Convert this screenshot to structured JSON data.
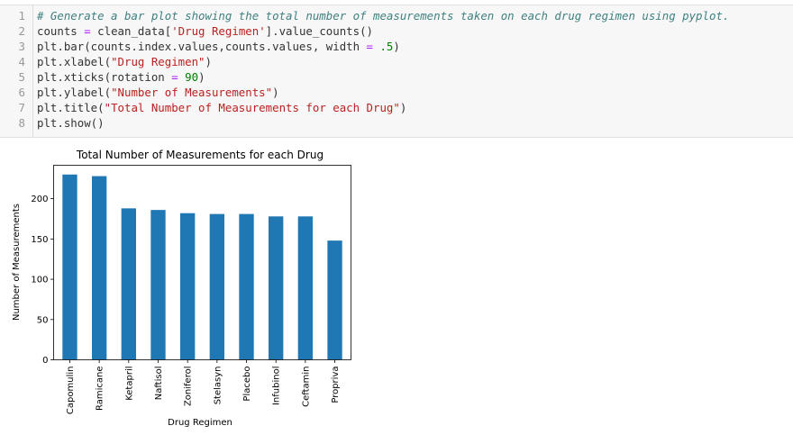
{
  "code": {
    "lines": [
      {
        "n": "1",
        "segments": [
          {
            "t": "# Generate a bar plot showing the total number of measurements taken on each drug regimen using pyplot.",
            "c": "cmt"
          }
        ]
      },
      {
        "n": "2",
        "segments": [
          {
            "t": "counts ",
            "c": ""
          },
          {
            "t": "=",
            "c": "op"
          },
          {
            "t": " clean_data[",
            "c": ""
          },
          {
            "t": "'Drug Regimen'",
            "c": "str"
          },
          {
            "t": "].value_counts()",
            "c": ""
          }
        ]
      },
      {
        "n": "3",
        "segments": [
          {
            "t": "plt.bar(counts.index.values,counts.values, width ",
            "c": ""
          },
          {
            "t": "=",
            "c": "op"
          },
          {
            "t": " ",
            "c": ""
          },
          {
            "t": ".5",
            "c": "num"
          },
          {
            "t": ")",
            "c": ""
          }
        ]
      },
      {
        "n": "4",
        "segments": [
          {
            "t": "plt.xlabel(",
            "c": ""
          },
          {
            "t": "\"Drug Regimen\"",
            "c": "str"
          },
          {
            "t": ")",
            "c": ""
          }
        ]
      },
      {
        "n": "5",
        "segments": [
          {
            "t": "plt.xticks(rotation ",
            "c": ""
          },
          {
            "t": "=",
            "c": "op"
          },
          {
            "t": " ",
            "c": ""
          },
          {
            "t": "90",
            "c": "num"
          },
          {
            "t": ")",
            "c": ""
          }
        ]
      },
      {
        "n": "6",
        "segments": [
          {
            "t": "plt.ylabel(",
            "c": ""
          },
          {
            "t": "\"Number of Measurements\"",
            "c": "str"
          },
          {
            "t": ")",
            "c": ""
          }
        ]
      },
      {
        "n": "7",
        "segments": [
          {
            "t": "plt.title(",
            "c": ""
          },
          {
            "t": "\"Total Number of Measurements for each Drug\"",
            "c": "str"
          },
          {
            "t": ")",
            "c": ""
          }
        ]
      },
      {
        "n": "8",
        "segments": [
          {
            "t": "plt.show()",
            "c": ""
          }
        ]
      }
    ]
  },
  "chart_data": {
    "type": "bar",
    "title": "Total Number of Measurements for each Drug",
    "xlabel": "Drug Regimen",
    "ylabel": "Number of Measurements",
    "categories": [
      "Capomulin",
      "Ramicane",
      "Ketapril",
      "Naftisol",
      "Zoniferol",
      "Stelasyn",
      "Placebo",
      "Infubinol",
      "Ceftamin",
      "Propriva"
    ],
    "values": [
      230,
      228,
      188,
      186,
      182,
      181,
      181,
      178,
      178,
      148
    ],
    "yticks": [
      0,
      50,
      100,
      150,
      200
    ],
    "ylim": [
      0,
      241.5
    ],
    "bar_color": "#1f77b4",
    "grid": false,
    "legend": false
  }
}
